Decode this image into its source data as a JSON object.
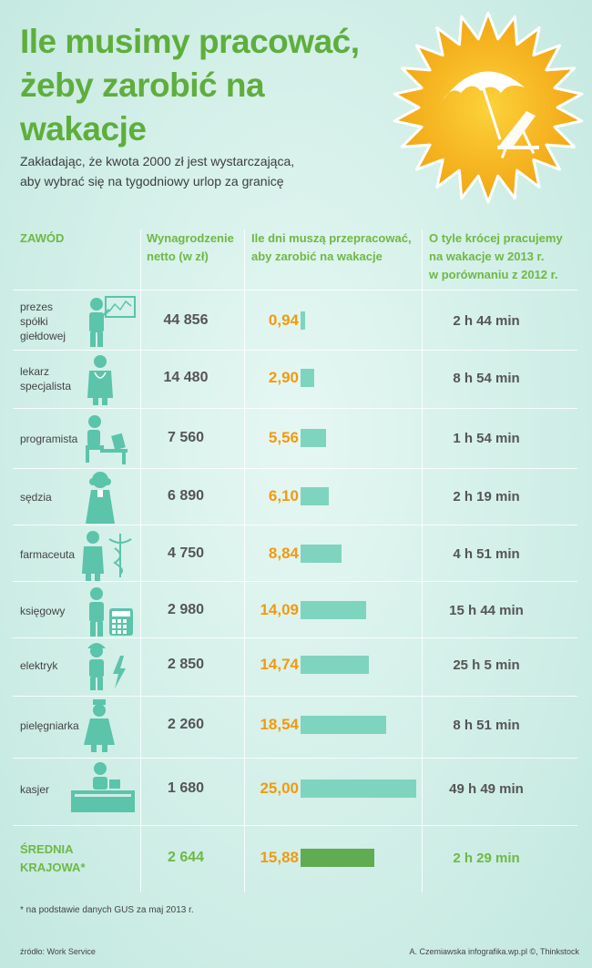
{
  "title": [
    "Ile musimy pracować,",
    "żeby zarobić na wakacje"
  ],
  "subtitle": [
    "Zakładając, że kwota 2000 zł jest wystarczająca,",
    "aby wybrać się na tygodniowy urlop za granicę"
  ],
  "headers": {
    "zawod": "ZAWÓD",
    "wynagrodzenie": [
      "Wynagrodzenie",
      "netto (w zł)"
    ],
    "dni": [
      "Ile dni muszą przepracować,",
      "aby zarobić na wakacje"
    ],
    "krocej": [
      "O tyle krócej pracujemy",
      "na wakacje w 2013 r.",
      "w porównaniu z 2012 r."
    ]
  },
  "colors": {
    "title_green": "#5fae3d",
    "header_green": "#6fb845",
    "days_orange": "#f29a0d",
    "bar_teal": "#7fd4bf",
    "bar_avg_green": "#61ab53",
    "icon_teal": "#5bc4aa",
    "sun_yellow": "#f6b81c"
  },
  "chart_data": {
    "type": "bar",
    "orientation": "horizontal",
    "categories": [
      "prezes spółki giełdowej",
      "lekarz specjalista",
      "programista",
      "sędzia",
      "farmaceuta",
      "księgowy",
      "elektryk",
      "pielęgniarka",
      "kasjer",
      "ŚREDNIA KRAJOWA*"
    ],
    "values": [
      0.94,
      2.9,
      5.56,
      6.1,
      8.84,
      14.09,
      14.74,
      18.54,
      25.0,
      15.88
    ],
    "xlim": [
      0,
      25
    ]
  },
  "rows": [
    {
      "job": [
        "prezes",
        "spółki",
        "giełdowej"
      ],
      "icon": "ceo-presentation-icon",
      "salary": "44 856",
      "days": "0,94",
      "less": "2 h 44 min"
    },
    {
      "job": [
        "lekarz",
        "specjalista"
      ],
      "icon": "doctor-icon",
      "salary": "14 480",
      "days": "2,90",
      "less": "8 h 54 min"
    },
    {
      "job": [
        "programista"
      ],
      "icon": "programmer-desk-icon",
      "salary": "7 560",
      "days": "5,56",
      "less": "1 h 54 min"
    },
    {
      "job": [
        "sędzia"
      ],
      "icon": "judge-icon",
      "salary": "6 890",
      "days": "6,10",
      "less": "2 h 19 min"
    },
    {
      "job": [
        "farmaceuta"
      ],
      "icon": "pharmacist-caduceus-icon",
      "salary": "4 750",
      "days": "8,84",
      "less": "4 h 51 min"
    },
    {
      "job": [
        "księgowy"
      ],
      "icon": "accountant-calculator-icon",
      "salary": "2 980",
      "days": "14,09",
      "less": "15 h 44 min"
    },
    {
      "job": [
        "elektryk"
      ],
      "icon": "electrician-bolt-icon",
      "salary": "2 850",
      "days": "14,74",
      "less": "25 h 5 min"
    },
    {
      "job": [
        "pielęgniarka"
      ],
      "icon": "nurse-icon",
      "salary": "2 260",
      "days": "18,54",
      "less": "8 h 51 min"
    },
    {
      "job": [
        "kasjer"
      ],
      "icon": "cashier-counter-icon",
      "salary": "1 680",
      "days": "25,00",
      "less": "49 h 49 min"
    },
    {
      "job": [
        "ŚREDNIA",
        "KRAJOWA*"
      ],
      "icon": "",
      "salary": "2 644",
      "days": "15,88",
      "less": "2 h 29 min",
      "average": true
    }
  ],
  "footnote": "* na podstawie danych GUS za maj 2013 r.",
  "source": "źródło: Work Service",
  "credit": "A. Czemiawska infografika.wp.pl ©, Thinkstock"
}
